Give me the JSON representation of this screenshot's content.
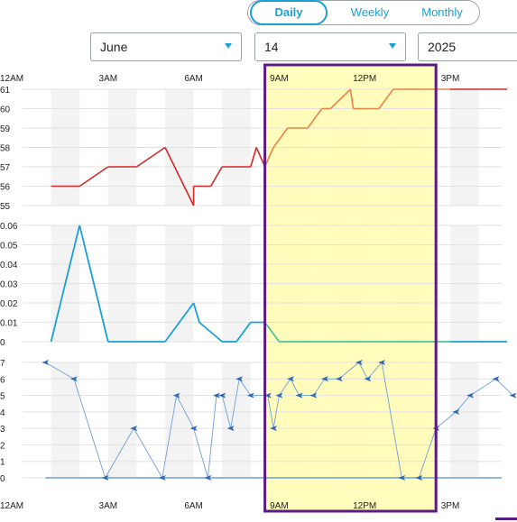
{
  "period_tabs": [
    {
      "label": "Daily",
      "active": true
    },
    {
      "label": "Weekly",
      "active": false
    },
    {
      "label": "Monthly",
      "active": false
    }
  ],
  "selectors": {
    "month": "June",
    "day": "14",
    "year": "2025"
  },
  "colors": {
    "accent": "#1a9fd6",
    "highlight_fill": "#fffbb0",
    "highlight_border": "#5b1a86",
    "temp_line": "#d62728",
    "temp_line_highlight": "#e8834a",
    "precip_line": "#1a9fd6",
    "precip_line_highlight": "#4fc29a",
    "wind_line": "#6f9ed4"
  },
  "chart_data": {
    "x_ticks": [
      "12AM",
      "3AM",
      "6AM",
      "9AM",
      "12PM",
      "3PM"
    ],
    "highlight_range_hours": [
      8.5,
      14.5
    ],
    "panels": [
      {
        "type": "line",
        "yticks": [
          55,
          56,
          57,
          58,
          59,
          60,
          61
        ],
        "ylim": [
          55,
          61
        ],
        "x": [
          1,
          2,
          3,
          4,
          5,
          6,
          6.0,
          6.6,
          7,
          8,
          8.2,
          8.5,
          8.8,
          9.3,
          10,
          10.5,
          10.8,
          11.5,
          11.6,
          12.5,
          13,
          13.5,
          14,
          15,
          16,
          17
        ],
        "y": [
          56,
          56,
          57,
          57,
          58,
          55,
          56,
          56,
          57,
          57,
          58,
          57,
          58,
          59,
          59,
          60,
          60,
          61,
          60,
          60,
          61,
          61,
          61,
          61,
          61,
          61
        ]
      },
      {
        "type": "line",
        "yticks": [
          0,
          0.01,
          0.02,
          0.03,
          0.04,
          0.05,
          0.06
        ],
        "ylim": [
          0,
          0.06
        ],
        "x": [
          1,
          2,
          3,
          4,
          5,
          6,
          6.2,
          7,
          7.5,
          8,
          8.5,
          9,
          10,
          11,
          12,
          13,
          14,
          15,
          16,
          17
        ],
        "y": [
          0,
          0.06,
          0,
          0,
          0,
          0.02,
          0.01,
          0,
          0,
          0.01,
          0.01,
          0,
          0,
          0,
          0,
          0,
          0,
          0,
          0,
          0
        ]
      },
      {
        "type": "line",
        "yticks": [
          0,
          1,
          2,
          3,
          4,
          5,
          6,
          7
        ],
        "ylim": [
          0,
          7
        ],
        "x": [
          0.8,
          1.8,
          2.9,
          3.9,
          4.9,
          5.4,
          6.0,
          6.5,
          6.8,
          7.0,
          7.3,
          7.6,
          8.0,
          8.6,
          8.8,
          9.0,
          9.4,
          9.7,
          10.2,
          10.6,
          11.1,
          11.8,
          12.1,
          12.6,
          13.3,
          13.9,
          14.5,
          15.2,
          15.7,
          16.6,
          17.2
        ],
        "y": [
          7,
          6,
          0,
          3,
          0,
          5,
          3,
          0,
          5,
          5,
          3,
          6,
          5,
          5,
          3,
          5,
          6,
          5,
          5,
          6,
          6,
          7,
          6,
          7,
          0,
          0,
          3,
          4,
          5,
          6,
          5
        ]
      }
    ]
  }
}
